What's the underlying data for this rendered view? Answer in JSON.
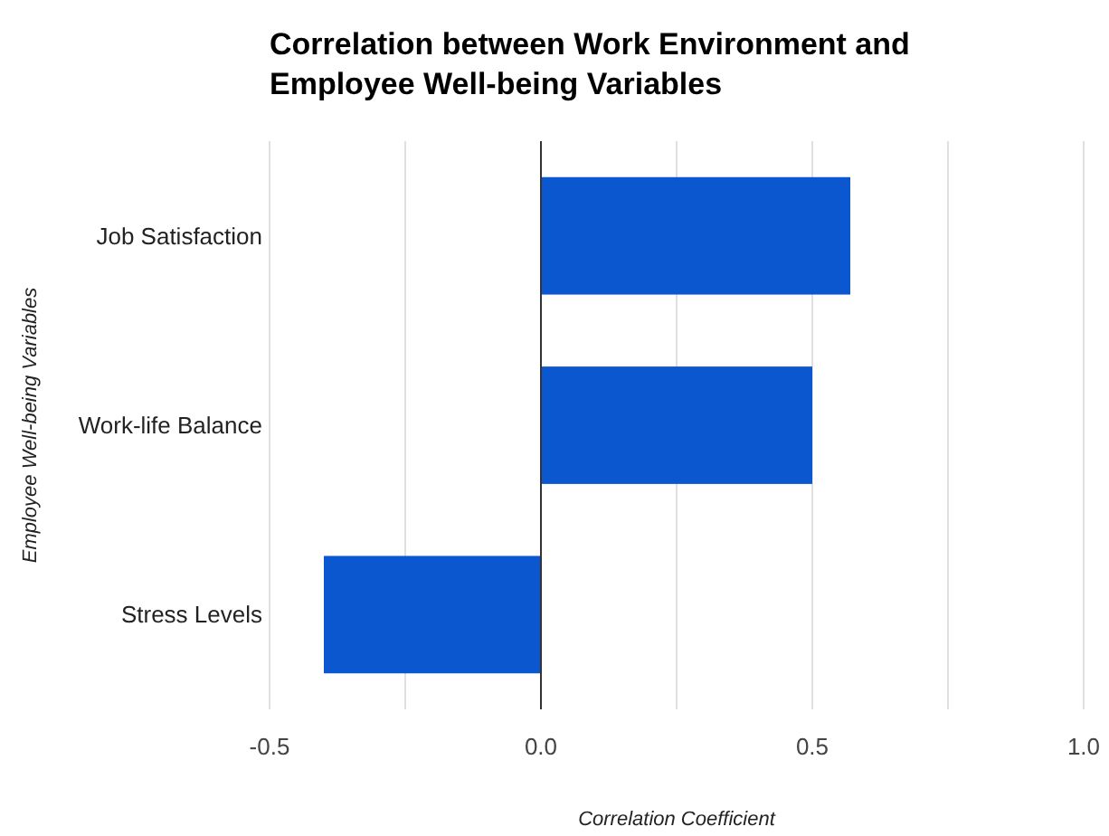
{
  "chart_data": {
    "type": "bar",
    "orientation": "horizontal",
    "title": "Correlation between Work Environment and Employee Well-being Variables",
    "xlabel": "Correlation Coefficient",
    "ylabel": "Employee Well-being Variables",
    "categories": [
      "Job Satisfaction",
      "Work-life Balance",
      "Stress Levels"
    ],
    "values": [
      0.57,
      0.5,
      -0.4
    ],
    "color": "#0b57d0",
    "xlim": [
      -0.5,
      1.0
    ],
    "xticks": [
      -0.5,
      {
        "value": -0.25,
        "label": null
      },
      {
        "value": 0,
        "label": "0.0"
      },
      {
        "value": 0.25,
        "label": null
      },
      0.5,
      {
        "value": 0.75,
        "label": null
      },
      {
        "value": 1,
        "label": "1.0"
      }
    ],
    "grid": "x"
  }
}
